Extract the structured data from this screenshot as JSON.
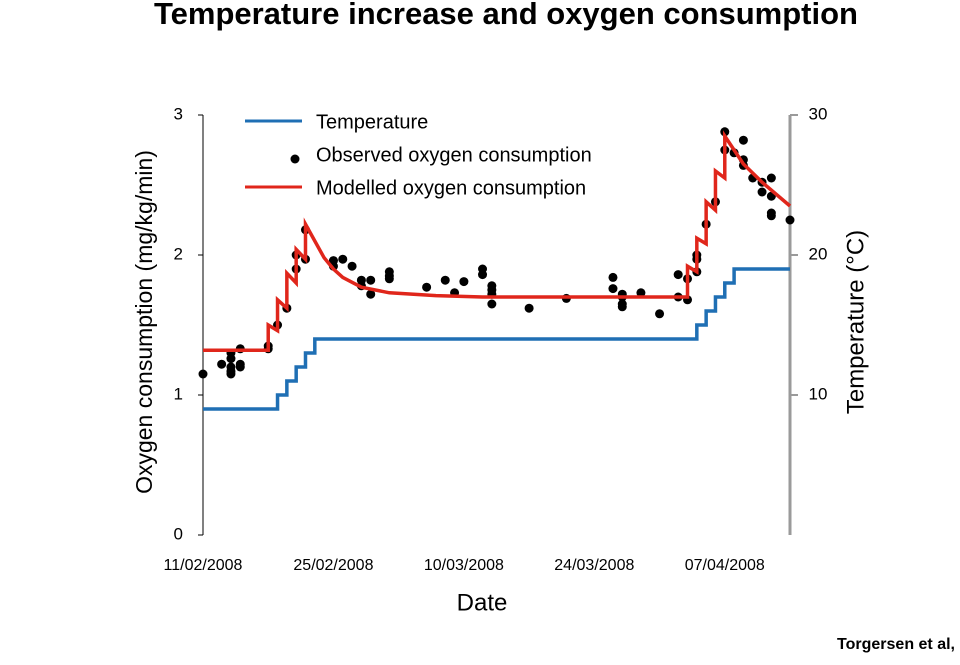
{
  "chart_data": {
    "type": "line",
    "title": "Temperature increase and oxygen consumption",
    "x_label": "Date",
    "y_label": "Oxygen consumption (mg/kg/min)",
    "y2_label": "Temperature (°C)",
    "footnote": "Torgersen et al,",
    "xlim": [
      "11/02/2008",
      "14/04/2008"
    ],
    "xticks": [
      "11/02/2008",
      "25/02/2008",
      "10/03/2008",
      "24/03/2008",
      "07/04/2008"
    ],
    "ylim": [
      0,
      3
    ],
    "yticks": [
      0,
      1,
      2,
      3
    ],
    "y2lim": [
      0,
      30
    ],
    "y2ticks": [
      10,
      20,
      30
    ],
    "legend": "upper left",
    "series": [
      {
        "name": "Temperature",
        "color": "#1f6fb4",
        "axis": "y2",
        "style": "step",
        "x": [
          "11/02/2008",
          "18/02/2008",
          "19/02/2008",
          "20/02/2008",
          "21/02/2008",
          "22/02/2008",
          "23/02/2008",
          "03/04/2008",
          "04/04/2008",
          "05/04/2008",
          "06/04/2008",
          "07/04/2008",
          "08/04/2008",
          "14/04/2008"
        ],
        "values": [
          9,
          9,
          10,
          11,
          12,
          13,
          14,
          14,
          15,
          16,
          17,
          18,
          19,
          19
        ]
      },
      {
        "name": "Observed oxygen consumption",
        "color": "#000000",
        "style": "points",
        "x": [
          "11/02/2008",
          "13/02/2008",
          "14/02/2008",
          "14/02/2008",
          "14/02/2008",
          "14/02/2008",
          "14/02/2008",
          "15/02/2008",
          "15/02/2008",
          "15/02/2008",
          "18/02/2008",
          "18/02/2008",
          "19/02/2008",
          "20/02/2008",
          "21/02/2008",
          "21/02/2008",
          "22/02/2008",
          "22/02/2008",
          "25/02/2008",
          "25/02/2008",
          "26/02/2008",
          "27/02/2008",
          "28/02/2008",
          "28/02/2008",
          "29/02/2008",
          "29/02/2008",
          "02/03/2008",
          "02/03/2008",
          "02/03/2008",
          "06/03/2008",
          "08/03/2008",
          "09/03/2008",
          "10/03/2008",
          "12/03/2008",
          "12/03/2008",
          "13/03/2008",
          "13/03/2008",
          "13/03/2008",
          "13/03/2008",
          "17/03/2008",
          "21/03/2008",
          "26/03/2008",
          "26/03/2008",
          "27/03/2008",
          "27/03/2008",
          "27/03/2008",
          "27/03/2008",
          "29/03/2008",
          "31/03/2008",
          "02/04/2008",
          "02/04/2008",
          "03/04/2008",
          "03/04/2008",
          "04/04/2008",
          "04/04/2008",
          "04/04/2008",
          "05/04/2008",
          "06/04/2008",
          "07/04/2008",
          "07/04/2008",
          "08/04/2008",
          "09/04/2008",
          "09/04/2008",
          "09/04/2008",
          "10/04/2008",
          "11/04/2008",
          "11/04/2008",
          "12/04/2008",
          "12/04/2008",
          "12/04/2008",
          "12/04/2008",
          "14/04/2008"
        ],
        "values": [
          1.15,
          1.22,
          1.15,
          1.17,
          1.2,
          1.26,
          1.3,
          1.2,
          1.22,
          1.33,
          1.33,
          1.35,
          1.5,
          1.62,
          1.9,
          2.0,
          1.97,
          2.18,
          1.96,
          1.92,
          1.97,
          1.92,
          1.78,
          1.82,
          1.72,
          1.82,
          1.88,
          1.85,
          1.83,
          1.77,
          1.82,
          1.73,
          1.81,
          1.9,
          1.86,
          1.78,
          1.72,
          1.65,
          1.75,
          1.62,
          1.69,
          1.84,
          1.76,
          1.7,
          1.65,
          1.63,
          1.72,
          1.73,
          1.58,
          1.86,
          1.7,
          1.68,
          1.83,
          1.88,
          2.0,
          1.97,
          2.22,
          2.38,
          2.75,
          2.88,
          2.73,
          2.82,
          2.68,
          2.64,
          2.55,
          2.52,
          2.45,
          2.55,
          2.42,
          2.3,
          2.28,
          2.25
        ]
      },
      {
        "name": "Modelled oxygen consumption",
        "color": "#e0261b",
        "style": "line",
        "x": [
          "11/02/2008",
          "18/02/2008",
          "18/02/2008",
          "19/02/2008",
          "19/02/2008",
          "20/02/2008",
          "20/02/2008",
          "21/02/2008",
          "21/02/2008",
          "22/02/2008",
          "22/02/2008",
          "23/02/2008",
          "24/02/2008",
          "25/02/2008",
          "26/02/2008",
          "28/02/2008",
          "02/03/2008",
          "07/03/2008",
          "12/03/2008",
          "03/04/2008",
          "03/04/2008",
          "04/04/2008",
          "04/04/2008",
          "05/04/2008",
          "05/04/2008",
          "06/04/2008",
          "06/04/2008",
          "07/04/2008",
          "07/04/2008",
          "08/04/2008",
          "09/04/2008",
          "11/04/2008",
          "14/04/2008"
        ],
        "values": [
          1.32,
          1.32,
          1.5,
          1.46,
          1.68,
          1.62,
          1.87,
          1.8,
          2.04,
          1.97,
          2.22,
          2.1,
          1.98,
          1.9,
          1.84,
          1.77,
          1.73,
          1.71,
          1.7,
          1.7,
          1.92,
          1.88,
          2.12,
          2.08,
          2.38,
          2.32,
          2.6,
          2.55,
          2.85,
          2.75,
          2.65,
          2.52,
          2.35
        ]
      }
    ]
  }
}
